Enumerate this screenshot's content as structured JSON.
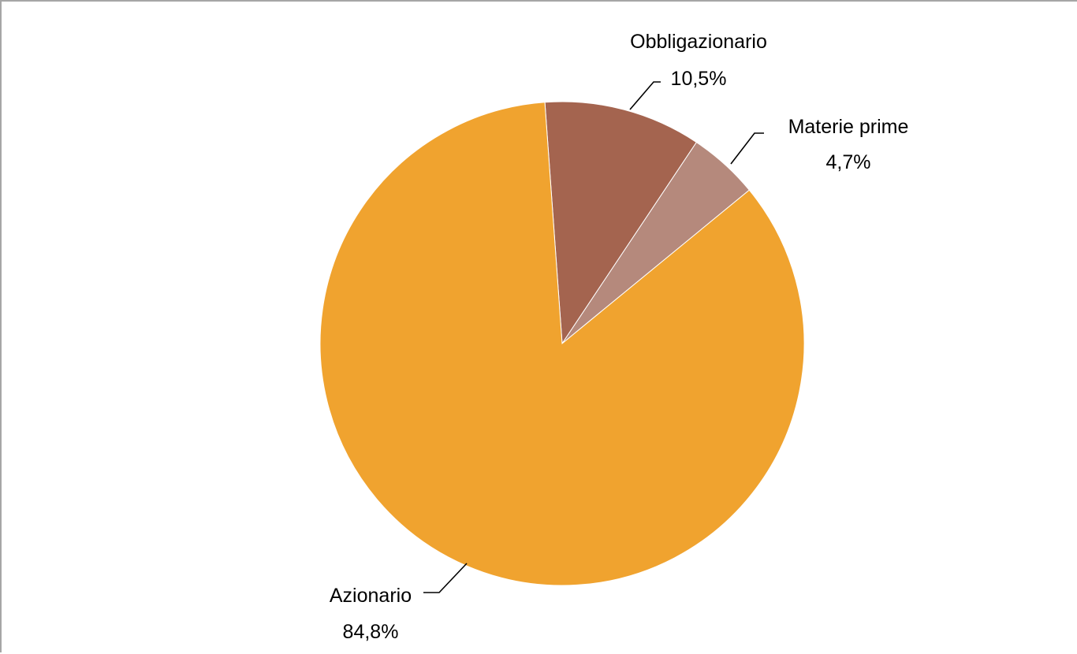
{
  "chart_data": {
    "type": "pie",
    "title": "",
    "slices": [
      {
        "label": "Obbligazionario",
        "value_label": "10,5%",
        "value": 10.5,
        "color": "#a4644f"
      },
      {
        "label": "Materie prime",
        "value_label": "4,7%",
        "value": 4.7,
        "color": "#b5897c"
      },
      {
        "label": "Azionario",
        "value_label": "84,8%",
        "value": 84.8,
        "color": "#f0a32f"
      }
    ],
    "start": "12 o'clock, slightly left",
    "direction": "clockwise",
    "data_labels": "outside, with leader lines",
    "legend": "none"
  }
}
